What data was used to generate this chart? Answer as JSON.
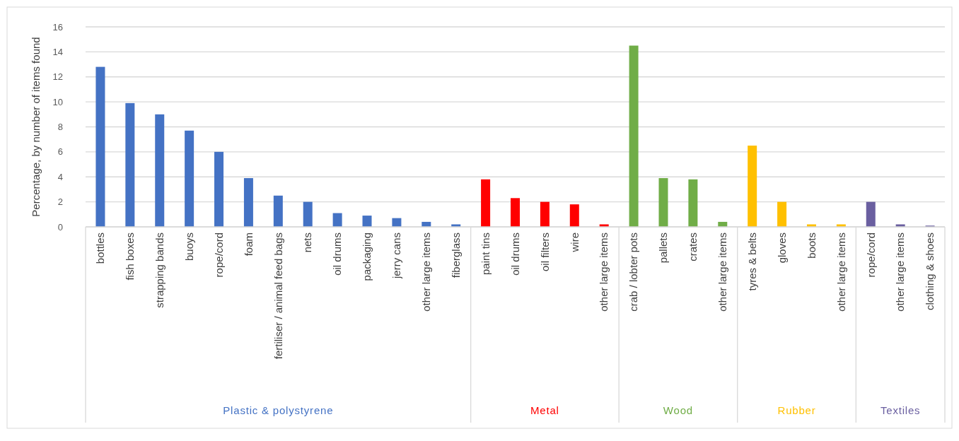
{
  "chart_data": {
    "type": "bar",
    "ylabel": "Percentage, by number of items found",
    "categories": [
      "bottles",
      "fish boxes",
      "strapping bands",
      "buoys",
      "rope/cord",
      "foam",
      "fertiliser / animal feed bags",
      "nets",
      "oil drums",
      "packaging",
      "jerry cans",
      "other large items",
      "fiberglass",
      "paint tins",
      "oil drums",
      "oil filters",
      "wire",
      "other large items",
      "crab / lobter pots",
      "pallets",
      "crates",
      "other large items",
      "tyres & belts",
      "gloves",
      "boots",
      "other large items",
      "rope/cord",
      "other large items",
      "clothing & shoes"
    ],
    "series": [
      {
        "name": "Plastic & polystyrene",
        "color": "#4472c4",
        "values": [
          12.8,
          9.9,
          9.0,
          7.7,
          6.0,
          3.9,
          2.5,
          2.0,
          1.1,
          0.9,
          0.7,
          0.4,
          0.2,
          null,
          null,
          null,
          null,
          null,
          null,
          null,
          null,
          null,
          null,
          null,
          null,
          null,
          null,
          null,
          null
        ]
      },
      {
        "name": "Metal",
        "color": "#ff0000",
        "values": [
          null,
          null,
          null,
          null,
          null,
          null,
          null,
          null,
          null,
          null,
          null,
          null,
          null,
          3.8,
          2.3,
          2.0,
          1.8,
          0.2,
          null,
          null,
          null,
          null,
          null,
          null,
          null,
          null,
          null,
          null,
          null
        ]
      },
      {
        "name": "Wood",
        "color": "#70ad47",
        "values": [
          null,
          null,
          null,
          null,
          null,
          null,
          null,
          null,
          null,
          null,
          null,
          null,
          null,
          null,
          null,
          null,
          null,
          null,
          14.5,
          3.9,
          3.8,
          0.4,
          null,
          null,
          null,
          null,
          null,
          null,
          null
        ]
      },
      {
        "name": "Rubber",
        "color": "#ffc000",
        "values": [
          null,
          null,
          null,
          null,
          null,
          null,
          null,
          null,
          null,
          null,
          null,
          null,
          null,
          null,
          null,
          null,
          null,
          null,
          null,
          null,
          null,
          null,
          6.5,
          2.0,
          0.2,
          0.2,
          null,
          null,
          null
        ]
      },
      {
        "name": "Textiles",
        "color": "#6a5fa0",
        "values": [
          null,
          null,
          null,
          null,
          null,
          null,
          null,
          null,
          null,
          null,
          null,
          null,
          null,
          null,
          null,
          null,
          null,
          null,
          null,
          null,
          null,
          null,
          null,
          null,
          null,
          null,
          2.0,
          0.2,
          0.1
        ]
      }
    ],
    "ylim": [
      0,
      16
    ],
    "yticks": [
      0,
      2,
      4,
      6,
      8,
      10,
      12,
      14,
      16
    ],
    "grid": "y",
    "legend": false
  }
}
